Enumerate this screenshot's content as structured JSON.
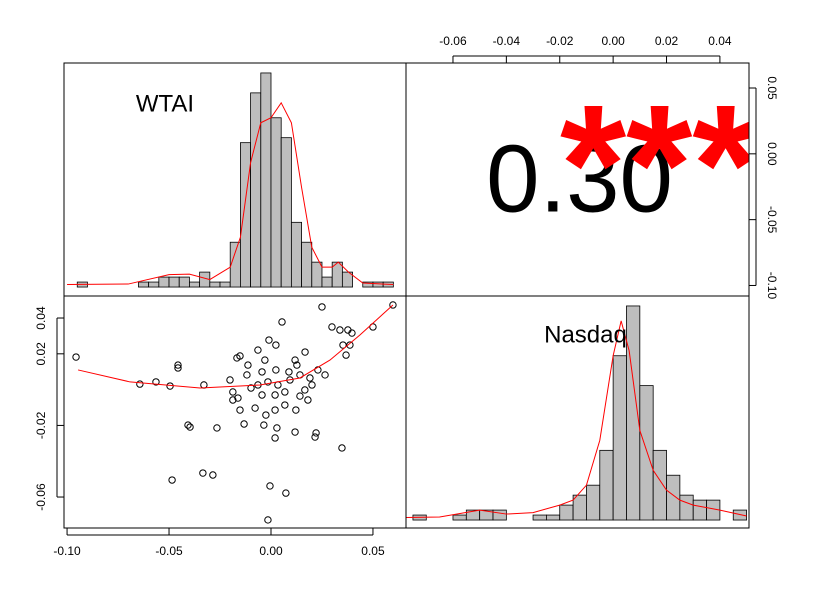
{
  "chart_data": [
    {
      "type": "histogram",
      "label": "WTAI",
      "color": "#bebebe",
      "bins": [
        -0.1,
        -0.095,
        -0.09,
        -0.085,
        -0.08,
        -0.075,
        -0.07,
        -0.065,
        -0.06,
        -0.055,
        -0.05,
        -0.045,
        -0.04,
        -0.035,
        -0.03,
        -0.025,
        -0.02,
        -0.015,
        -0.01,
        -0.005,
        0,
        0.005,
        0.01,
        0.015,
        0.02,
        0.025,
        0.03,
        0.035,
        0.04,
        0.045,
        0.05,
        0.055,
        0.06
      ],
      "values": [
        0,
        1,
        0,
        0,
        0,
        0,
        0,
        1,
        1,
        2,
        2,
        2,
        1,
        3,
        1,
        1,
        9,
        29,
        39,
        43,
        34,
        30,
        13,
        9,
        5,
        2,
        5,
        3,
        0,
        1,
        1,
        1
      ],
      "curve": {
        "color": "#ff0000",
        "x": [
          -0.1,
          -0.07,
          -0.05,
          -0.04,
          -0.03,
          -0.02,
          -0.015,
          -0.01,
          -0.005,
          0,
          0.005,
          0.01,
          0.015,
          0.02,
          0.025,
          0.03,
          0.033,
          0.038,
          0.045,
          0.06
        ],
        "y": [
          0.5,
          0.6,
          2.5,
          2.6,
          1.5,
          4,
          10,
          25,
          33,
          34,
          37,
          33,
          20,
          8,
          4,
          4,
          5,
          3,
          0.8,
          0.5
        ]
      },
      "xlim": [
        -0.1015,
        0.0662
      ],
      "ylim": [
        -1.8,
        45
      ]
    },
    {
      "type": "correlation",
      "label": "0.30",
      "stars": "***",
      "stars_color": "#ff0000",
      "xlim": [
        -0.0776,
        0.0509
      ],
      "ylim": [
        -0.108,
        0.069
      ],
      "xticks": [
        -0.06,
        -0.04,
        -0.02,
        {
          "value": 0,
          "label": "0.00"
        },
        0.02,
        0.04
      ],
      "yticks": [
        0.05,
        {
          "value": 0,
          "label": "0.00"
        },
        -0.05,
        {
          "value": -0.1,
          "label": "-0.10"
        }
      ]
    },
    {
      "type": "scatter",
      "color": "#000000",
      "x": [
        -0.0956,
        -0.0643,
        -0.0564,
        -0.0495,
        -0.0456,
        -0.0456,
        -0.0485,
        -0.0407,
        -0.0397,
        -0.0334,
        -0.0285,
        -0.0329,
        -0.0265,
        -0.0005,
        0.0073,
        -0.0015,
        -0.0152,
        -0.0167,
        0.0054,
        -0.001,
        0.0024,
        0.025,
        0.0598,
        0.05,
        0.0397,
        0.0338,
        0.0353,
        0.0368,
        0.0387,
        0.0299,
        0.0377,
        0.0348,
        0.0216,
        0.0221,
        0.002,
        0.0118,
        0.0029,
        -0.0035,
        -0.0132,
        -0.0187,
        -0.0201,
        -0.0187,
        -0.0118,
        -0.0064,
        -0.0044,
        0.0093,
        0.0142,
        0.0166,
        0.0191,
        0.023,
        0.0265,
        0.0142,
        0.0068,
        0.002,
        -0.0078,
        -0.0152,
        -0.003,
        0.0118,
        0.0167,
        -0.0064,
        0.0034,
        -0.0015,
        0.0068,
        -0.0098,
        0.0024,
        0.0088,
        0.0127,
        -0.0044,
        -0.0113,
        -0.0162,
        0.0181,
        0.0122,
        -0.0025,
        0.002,
        0.0201
      ],
      "y": [
        0.0182,
        0.0031,
        0.0043,
        0.002,
        0.0137,
        0.0121,
        -0.0505,
        -0.0198,
        -0.0209,
        -0.0466,
        -0.0477,
        0.0026,
        -0.0214,
        -0.0538,
        -0.0578,
        -0.0728,
        0.0188,
        0.0177,
        0.0378,
        0.0277,
        0.0249,
        0.0462,
        0.0473,
        0.035,
        0.0316,
        0.0333,
        0.0249,
        0.0193,
        0.0249,
        0.035,
        0.0333,
        -0.0326,
        -0.0265,
        -0.0242,
        -0.027,
        -0.0237,
        -0.0214,
        -0.0198,
        -0.0192,
        -0.0058,
        0.0054,
        -0.0013,
        0.0082,
        0.0026,
        -0.003,
        0.0054,
        0.0082,
        -0.0002,
        0.0065,
        0.011,
        0.0082,
        -0.0036,
        -0.0086,
        -0.0114,
        -0.0103,
        -0.0114,
        0.0165,
        0.0165,
        0.021,
        0.0221,
        0.0026,
        0.0043,
        -0.0013,
        0.0009,
        0.011,
        0.0099,
        0.0137,
        0.0099,
        0.0137,
        -0.0047,
        -0.0058,
        -0.0114,
        -0.0142,
        -0.003,
        0.0026
      ],
      "fit": {
        "color": "#ff0000",
        "x": [
          -0.0946,
          -0.0691,
          -0.0348,
          -0.0054,
          0.0142,
          0.0289,
          0.0436,
          0.0598
        ],
        "y": [
          0.011,
          0.0043,
          0.0009,
          0.0026,
          0.0065,
          0.0165,
          0.0305,
          0.0473
        ]
      },
      "xlim": [
        -0.1015,
        0.0662
      ],
      "ylim": [
        -0.0773,
        0.0523
      ],
      "xticks": [
        {
          "value": -0.1,
          "label": "-0.10"
        },
        -0.05,
        {
          "value": 0,
          "label": "0.00"
        },
        0.05
      ],
      "yticks": [
        0.04,
        0.02,
        -0.02,
        -0.06
      ]
    },
    {
      "type": "histogram",
      "label": "Nasdaq",
      "color": "#bebebe",
      "bins": [
        -0.075,
        -0.07,
        -0.065,
        -0.06,
        -0.055,
        -0.05,
        -0.045,
        -0.04,
        -0.035,
        -0.03,
        -0.025,
        -0.02,
        -0.015,
        -0.01,
        -0.005,
        0,
        0.005,
        0.01,
        0.015,
        0.02,
        0.025,
        0.03,
        0.035,
        0.04,
        0.045,
        0.05
      ],
      "values": [
        1,
        0,
        0,
        1,
        2,
        2,
        2,
        0,
        0,
        1,
        1,
        3,
        5,
        7,
        14,
        33,
        43,
        27,
        14,
        9,
        5,
        4,
        4,
        0,
        2
      ],
      "curve": {
        "color": "#ff0000",
        "x": [
          -0.0776,
          -0.065,
          -0.05,
          -0.04,
          -0.03,
          -0.02,
          -0.015,
          -0.01,
          -0.005,
          0,
          0.003,
          0.006,
          0.01,
          0.015,
          0.02,
          0.025,
          0.03,
          0.04,
          0.05
        ],
        "y": [
          0.5,
          0.6,
          2,
          1.2,
          1.5,
          3,
          4,
          7,
          16,
          33,
          40,
          34,
          18,
          10,
          6,
          4,
          3,
          2,
          0.8
        ]
      },
      "xlim": [
        -0.0776,
        0.0509
      ],
      "ylim": [
        -1.6,
        45
      ]
    }
  ]
}
